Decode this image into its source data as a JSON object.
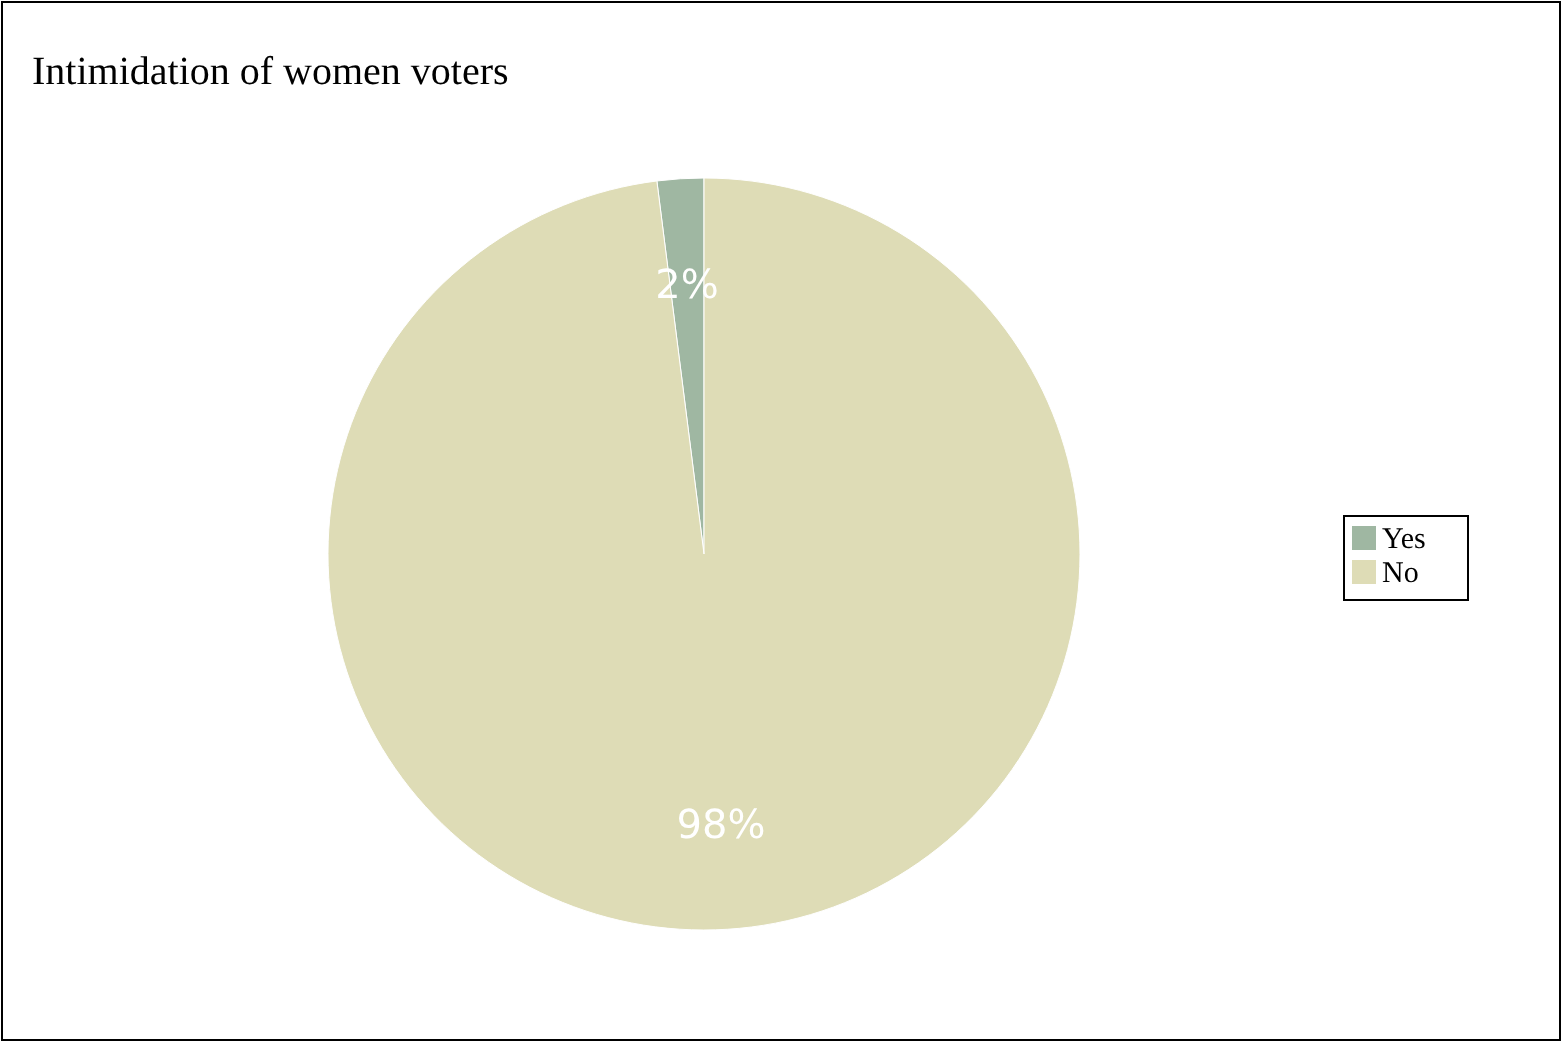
{
  "chart_data": {
    "type": "pie",
    "title": "Intimidation of women voters",
    "categories": [
      "Yes",
      "No"
    ],
    "values": [
      2,
      98
    ],
    "colors": [
      "#9fb7a2",
      "#dedcb6"
    ],
    "value_labels": [
      "2%",
      "98%"
    ],
    "legend": "right"
  }
}
